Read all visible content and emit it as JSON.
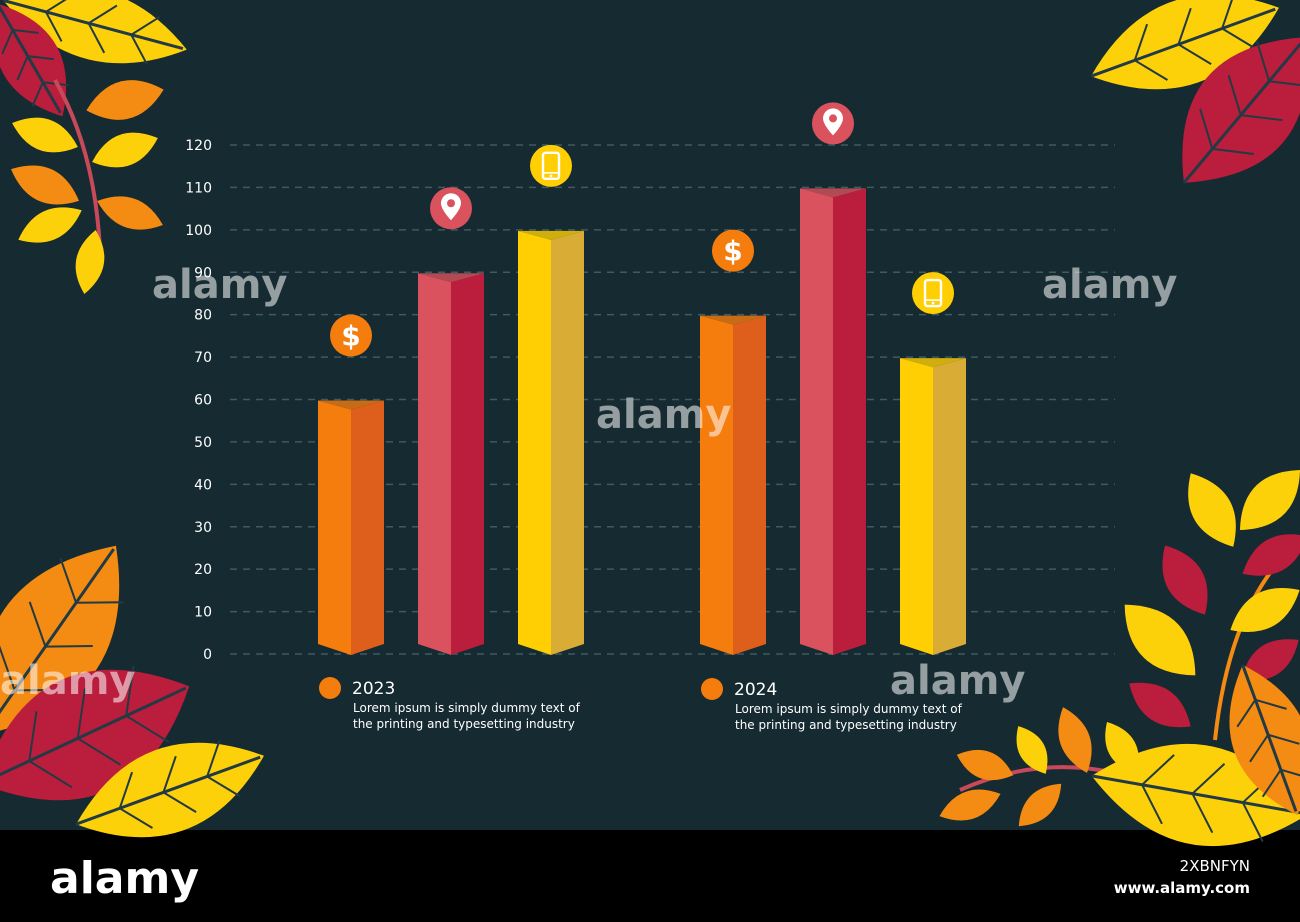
{
  "chart_data": {
    "type": "bar",
    "y_ticks": [
      0,
      10,
      20,
      30,
      40,
      50,
      60,
      70,
      80,
      90,
      100,
      110,
      120
    ],
    "ylim": [
      0,
      120
    ],
    "grid": true,
    "groups": [
      {
        "year": "2023",
        "text": [
          "Lorem ipsum is simply dummy text of",
          "the printing and typesetting industry"
        ],
        "bars": [
          {
            "value": 60,
            "icon": "dollar-icon",
            "color": "#f47d0e",
            "shade": "#dd5f1b"
          },
          {
            "value": 90,
            "icon": "location-pin-icon",
            "color": "#d9525e",
            "shade": "#bb1d3d"
          },
          {
            "value": 100,
            "icon": "smartphone-icon",
            "color": "#ffcf03",
            "shade": "#d9ac35"
          }
        ]
      },
      {
        "year": "2024",
        "text": [
          "Lorem ipsum is simply dummy text of",
          "the printing and typesetting industry"
        ],
        "bars": [
          {
            "value": 80,
            "icon": "dollar-icon",
            "color": "#f47d0e",
            "shade": "#dd5f1b"
          },
          {
            "value": 110,
            "icon": "location-pin-icon",
            "color": "#d9525e",
            "shade": "#bb1d3d"
          },
          {
            "value": 70,
            "icon": "smartphone-icon",
            "color": "#ffcf03",
            "shade": "#d9ac35"
          }
        ]
      }
    ]
  },
  "watermark": "alamy",
  "footer": {
    "logo": "alamy",
    "image_id": "2XBNFYN",
    "site": "www.alamy.com"
  },
  "colors": {
    "background": "#162a31",
    "grid": "#3f5a61",
    "text": "#ffffff",
    "orange": "#f47d0e",
    "red": "#d9525e",
    "yellow": "#ffcf03",
    "leaf_red": "#bb1d3d",
    "leaf_yellow": "#fdd10a",
    "leaf_orange": "#f48b12",
    "leaf_vein": "#223a44"
  }
}
